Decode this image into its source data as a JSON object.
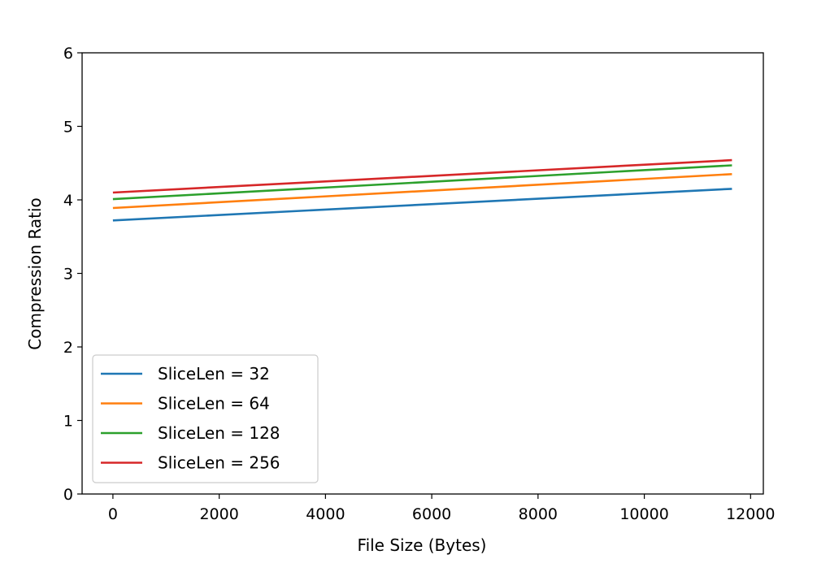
{
  "chart_data": {
    "type": "line",
    "title": "",
    "xlabel": "File Size (Bytes)",
    "ylabel": "Compression Ratio",
    "xlim": [
      -580,
      12240
    ],
    "ylim": [
      0,
      6
    ],
    "xticks": [
      0,
      2000,
      4000,
      6000,
      8000,
      10000,
      12000
    ],
    "xtick_labels": [
      "0",
      "2000",
      "4000",
      "6000",
      "8000",
      "10000",
      "12000"
    ],
    "yticks": [
      0,
      1,
      2,
      3,
      4,
      5,
      6
    ],
    "ytick_labels": [
      "0",
      "1",
      "2",
      "3",
      "4",
      "5",
      "6"
    ],
    "grid": false,
    "legend_position": "lower-left",
    "x": [
      0,
      11650
    ],
    "series": [
      {
        "name": "SliceLen = 32",
        "color": "#1f77b4",
        "values": [
          3.72,
          4.15
        ]
      },
      {
        "name": "SliceLen = 64",
        "color": "#ff7f0e",
        "values": [
          3.89,
          4.35
        ]
      },
      {
        "name": "SliceLen = 128",
        "color": "#2ca02c",
        "values": [
          4.01,
          4.47
        ]
      },
      {
        "name": "SliceLen = 256",
        "color": "#d62728",
        "values": [
          4.1,
          4.54
        ]
      }
    ]
  }
}
